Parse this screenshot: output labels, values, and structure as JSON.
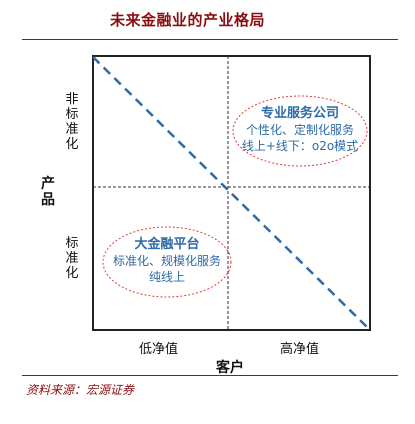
{
  "title": "未来金融业的产业格局",
  "axes": {
    "y_label": "产品",
    "y_top": "非标准化",
    "y_bottom": "标准化",
    "x_label": "客户",
    "x_left": "低净值",
    "x_right": "高净值"
  },
  "bubbles": {
    "top_right": {
      "title": "专业服务公司",
      "line1": "个性化、定制化服务",
      "line2": "线上+线下：o2o模式"
    },
    "bottom_left": {
      "title": "大金融平台",
      "line1": "标准化、规模化服务",
      "line2": "纯线上"
    }
  },
  "source": "资料来源：宏源证券",
  "colors": {
    "title": "#8b0d12",
    "diagonal": "#2e6aa6",
    "ellipse": "#e23b3b",
    "bubble_text": "#2e6aa6"
  }
}
